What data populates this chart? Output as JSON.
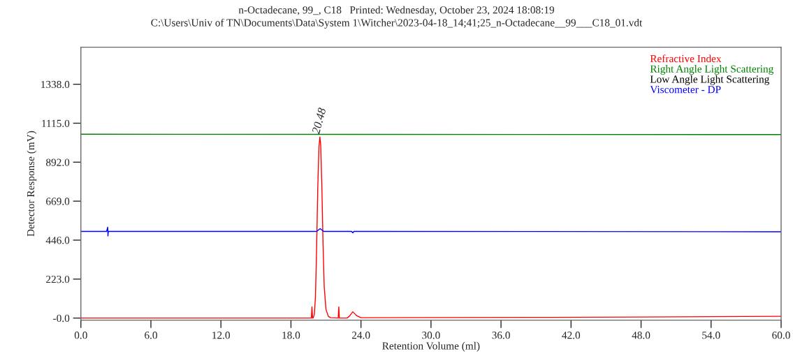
{
  "chart_data": {
    "type": "line",
    "title": "n-Octadecane, 99_, C18   Printed: Wednesday, October 23, 2024 18:08:19",
    "subtitle": "C:\\Users\\Univ of TN\\Documents\\Data\\System 1\\Witcher\\2023-04-18_14;41;25_n-Octadecane__99___C18_01.vdt",
    "xlabel": "Retention Volume (ml)",
    "ylabel": "Detector Response (mV)",
    "xlim": [
      0,
      60
    ],
    "ylim": [
      -12,
      1550
    ],
    "xticks": [
      {
        "value": 0,
        "label": "0.0"
      },
      {
        "value": 6,
        "label": "6.0"
      },
      {
        "value": 12,
        "label": "12.0"
      },
      {
        "value": 18,
        "label": "18.0"
      },
      {
        "value": 24,
        "label": "24.0"
      },
      {
        "value": 30,
        "label": "30.0"
      },
      {
        "value": 36,
        "label": "36.0"
      },
      {
        "value": 42,
        "label": "42.0"
      },
      {
        "value": 48,
        "label": "48.0"
      },
      {
        "value": 54,
        "label": "54.0"
      },
      {
        "value": 60,
        "label": "60.0"
      }
    ],
    "yticks": [
      {
        "value": 0,
        "label": "-0.0"
      },
      {
        "value": 223,
        "label": "223.0"
      },
      {
        "value": 446,
        "label": "446.0"
      },
      {
        "value": 669,
        "label": "669.0"
      },
      {
        "value": 892,
        "label": "892.0"
      },
      {
        "value": 1115,
        "label": "1115.0"
      },
      {
        "value": 1338,
        "label": "1338.0"
      }
    ],
    "grid": false,
    "legend": "top right",
    "marker": "none",
    "line_style": "solid",
    "annotations": [
      {
        "text": "20.48",
        "x": 20.48,
        "y": 1036
      }
    ],
    "series": [
      {
        "name": "Refractive Index",
        "color": "#ff0000",
        "x": [
          0,
          5,
          19.75,
          19.8,
          19.85,
          19.9,
          20.0,
          20.1,
          20.2,
          20.3,
          20.4,
          20.48,
          20.55,
          20.65,
          20.75,
          20.85,
          21.0,
          21.2,
          21.4,
          22.05,
          22.1,
          22.15,
          22.8,
          23.0,
          23.3,
          23.6,
          24.0,
          30,
          40,
          48,
          60
        ],
        "values": [
          0,
          0,
          0,
          64,
          0,
          0,
          20,
          120,
          400,
          750,
          980,
          1036,
          990,
          750,
          420,
          180,
          50,
          10,
          2,
          0,
          64,
          0,
          0,
          10,
          36,
          15,
          2,
          3,
          4,
          6,
          10
        ]
      },
      {
        "name": "Right Angle Light Scattering",
        "color": "#008000",
        "x": [
          0,
          60
        ],
        "values": [
          1052,
          1050
        ]
      },
      {
        "name": "Low Angle Light Scattering",
        "color": "#000000"
      },
      {
        "name": "Viscometer - DP",
        "color": "#0000ff",
        "x": [
          0,
          2.2,
          2.3,
          2.32,
          2.35,
          20.2,
          20.5,
          20.8,
          23.2,
          23.3,
          23.4,
          60
        ],
        "values": [
          496,
          496,
          520,
          470,
          496,
          496,
          512,
          496,
          496,
          488,
          496,
          494
        ]
      }
    ]
  }
}
